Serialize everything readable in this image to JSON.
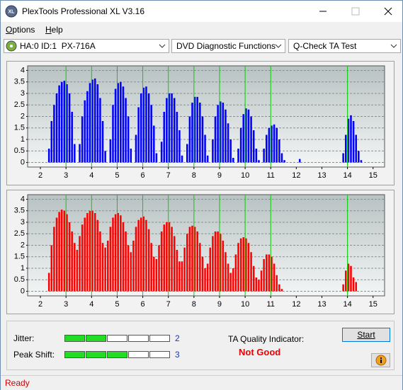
{
  "window": {
    "title": "PlexTools Professional XL V3.16",
    "icon": "XL"
  },
  "menu": [
    "Options",
    "Help"
  ],
  "toolbar": {
    "drive": "HA:0 ID:1  PX-716A",
    "function": "DVD Diagnostic Functions",
    "test": "Q-Check TA Test"
  },
  "chart_data": [
    {
      "type": "histogram",
      "color": "#0000ff",
      "grid": true,
      "xlim": [
        1.5,
        15.45
      ],
      "ylim": [
        -0.2,
        4.2
      ],
      "xticks": [
        2,
        3,
        4,
        5,
        6,
        7,
        8,
        9,
        10,
        11,
        12,
        13,
        14,
        15
      ],
      "yticks": [
        0,
        0.5,
        1,
        1.5,
        2,
        2.5,
        3,
        3.5,
        4
      ],
      "marker_lines": [
        3,
        4,
        5,
        6,
        7,
        8,
        9,
        10,
        11,
        14
      ],
      "marker_color": "#00d000",
      "bins": [
        2.2,
        2.3,
        2.4,
        2.5,
        2.6,
        2.7,
        2.8,
        2.9,
        3.0,
        3.1,
        3.2,
        3.3,
        3.4,
        3.5,
        3.6,
        3.7,
        3.8,
        3.9,
        4.0,
        4.1,
        4.2,
        4.3,
        4.4,
        4.5,
        4.6,
        4.7,
        4.8,
        4.9,
        5.0,
        5.1,
        5.2,
        5.3,
        5.4,
        5.5,
        5.6,
        5.7,
        5.8,
        5.9,
        6.0,
        6.1,
        6.2,
        6.3,
        6.4,
        6.5,
        6.6,
        6.7,
        6.8,
        6.9,
        7.0,
        7.1,
        7.2,
        7.3,
        7.4,
        7.5,
        7.6,
        7.7,
        7.8,
        7.9,
        8.0,
        8.1,
        8.2,
        8.3,
        8.4,
        8.5,
        8.6,
        8.7,
        8.8,
        8.9,
        9.0,
        9.1,
        9.2,
        9.3,
        9.4,
        9.5,
        9.6,
        9.7,
        9.8,
        9.9,
        10.0,
        10.1,
        10.2,
        10.3,
        10.4,
        10.5,
        10.6,
        10.7,
        10.8,
        10.9,
        11.0,
        11.1,
        11.2,
        11.3,
        11.4,
        11.5,
        11.6,
        11.7,
        11.8,
        11.9,
        12.0,
        12.1,
        12.2,
        12.3,
        12.4,
        12.5,
        12.6,
        12.7,
        12.8,
        12.9,
        13.0,
        13.1,
        13.2,
        13.3,
        13.4,
        13.5,
        13.6,
        13.7,
        13.8,
        13.9,
        14.0,
        14.1,
        14.2,
        14.3,
        14.4,
        14.5,
        14.6,
        14.7
      ],
      "values": [
        0,
        0.6,
        1.8,
        2.5,
        3.0,
        3.35,
        3.5,
        3.55,
        3.4,
        3.0,
        2.2,
        0.8,
        0,
        0.8,
        2.0,
        2.7,
        3.1,
        3.45,
        3.6,
        3.65,
        3.4,
        2.8,
        1.8,
        0.5,
        0,
        1.0,
        2.5,
        3.2,
        3.45,
        3.5,
        3.3,
        2.8,
        2.0,
        0.6,
        0,
        1.2,
        2.4,
        3.0,
        3.25,
        3.3,
        3.0,
        2.5,
        1.6,
        0.4,
        0,
        0.9,
        2.2,
        2.8,
        3.0,
        3.0,
        2.8,
        2.2,
        1.4,
        0.3,
        0,
        0.8,
        2.0,
        2.6,
        2.85,
        2.85,
        2.6,
        2.0,
        1.2,
        0.3,
        0,
        1.0,
        2.0,
        2.5,
        2.65,
        2.6,
        2.3,
        1.7,
        1.0,
        0.2,
        0,
        0.6,
        1.5,
        2.1,
        2.35,
        2.3,
        2.0,
        1.4,
        0.6,
        0.1,
        0,
        0.6,
        1.2,
        1.5,
        1.6,
        1.65,
        1.5,
        1.0,
        0.4,
        0.1,
        0,
        0,
        0,
        0,
        0,
        0.15,
        0,
        0,
        0,
        0,
        0,
        0,
        0,
        0,
        0,
        0,
        0,
        0,
        0,
        0,
        0,
        0,
        0.4,
        1.2,
        1.9,
        2.05,
        1.8,
        1.2,
        0.5,
        0.1,
        0
      ]
    },
    {
      "type": "histogram",
      "color": "#ff0000",
      "grid": true,
      "xlim": [
        1.5,
        15.45
      ],
      "ylim": [
        -0.2,
        4.2
      ],
      "xticks": [
        2,
        3,
        4,
        5,
        6,
        7,
        8,
        9,
        10,
        11,
        12,
        13,
        14,
        15
      ],
      "yticks": [
        0,
        0.5,
        1,
        1.5,
        2,
        2.5,
        3,
        3.5,
        4
      ],
      "marker_lines": [
        3,
        4,
        5,
        6,
        7,
        8,
        9,
        10,
        11,
        14
      ],
      "marker_color": "#00d000",
      "bins": [
        2.2,
        2.3,
        2.4,
        2.5,
        2.6,
        2.7,
        2.8,
        2.9,
        3.0,
        3.1,
        3.2,
        3.3,
        3.4,
        3.5,
        3.6,
        3.7,
        3.8,
        3.9,
        4.0,
        4.1,
        4.2,
        4.3,
        4.4,
        4.5,
        4.6,
        4.7,
        4.8,
        4.9,
        5.0,
        5.1,
        5.2,
        5.3,
        5.4,
        5.5,
        5.6,
        5.7,
        5.8,
        5.9,
        6.0,
        6.1,
        6.2,
        6.3,
        6.4,
        6.5,
        6.6,
        6.7,
        6.8,
        6.9,
        7.0,
        7.1,
        7.2,
        7.3,
        7.4,
        7.5,
        7.6,
        7.7,
        7.8,
        7.9,
        8.0,
        8.1,
        8.2,
        8.3,
        8.4,
        8.5,
        8.6,
        8.7,
        8.8,
        8.9,
        9.0,
        9.1,
        9.2,
        9.3,
        9.4,
        9.5,
        9.6,
        9.7,
        9.8,
        9.9,
        10.0,
        10.1,
        10.2,
        10.3,
        10.4,
        10.5,
        10.6,
        10.7,
        10.8,
        10.9,
        11.0,
        11.1,
        11.2,
        11.3,
        11.4,
        11.5,
        11.6,
        11.7,
        11.8,
        11.9,
        12.0,
        12.1,
        12.2,
        12.3,
        12.4,
        12.5,
        12.6,
        12.7,
        12.8,
        12.9,
        13.0,
        13.1,
        13.2,
        13.3,
        13.4,
        13.5,
        13.6,
        13.7,
        13.8,
        13.9,
        14.0,
        14.1,
        14.2,
        14.3,
        14.4,
        14.5,
        14.6,
        14.7
      ],
      "values": [
        0,
        0.8,
        2.0,
        2.8,
        3.2,
        3.45,
        3.55,
        3.5,
        3.35,
        3.0,
        2.6,
        2.1,
        1.8,
        2.4,
        2.9,
        3.2,
        3.4,
        3.5,
        3.5,
        3.4,
        3.1,
        2.6,
        2.1,
        1.9,
        2.2,
        2.8,
        3.2,
        3.35,
        3.4,
        3.3,
        3.0,
        2.6,
        2.0,
        1.7,
        2.2,
        2.8,
        3.1,
        3.2,
        3.25,
        3.1,
        2.7,
        2.1,
        1.5,
        1.4,
        2.0,
        2.6,
        2.9,
        3.0,
        3.0,
        2.8,
        2.4,
        1.8,
        1.3,
        1.3,
        1.9,
        2.5,
        2.8,
        2.85,
        2.8,
        2.6,
        2.1,
        1.5,
        1.0,
        1.2,
        1.9,
        2.4,
        2.6,
        2.6,
        2.5,
        2.2,
        1.7,
        1.2,
        0.8,
        1.0,
        1.6,
        2.1,
        2.3,
        2.35,
        2.3,
        2.1,
        1.7,
        1.1,
        0.6,
        0.5,
        0.9,
        1.4,
        1.6,
        1.6,
        1.5,
        1.2,
        0.7,
        0.3,
        0.1,
        0,
        0,
        0,
        0,
        0,
        0,
        0,
        0,
        0,
        0,
        0,
        0,
        0,
        0,
        0,
        0,
        0,
        0,
        0,
        0,
        0,
        0,
        0,
        0.3,
        0.9,
        1.2,
        1.1,
        0.6,
        0.4,
        0,
        0,
        0,
        0
      ]
    }
  ],
  "results": {
    "jitter": {
      "label": "Jitter:",
      "value": 2
    },
    "peak_shift": {
      "label": "Peak Shift:",
      "value": 3
    },
    "ta_quality": {
      "label": "TA Quality Indicator:",
      "value": "Not Good"
    }
  },
  "buttons": {
    "start": "Start"
  },
  "status": "Ready"
}
